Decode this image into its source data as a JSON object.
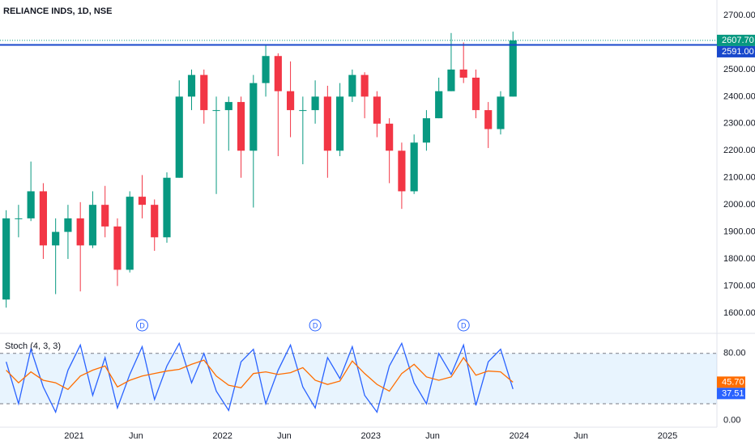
{
  "chart_data": [
    {
      "type": "candlestick",
      "title": "RELIANCE INDS, 1D, NSE",
      "x": [
        "2020-07",
        "2020-08",
        "2020-09",
        "2020-10",
        "2020-11",
        "2020-12",
        "2021-01",
        "2021-02",
        "2021-03",
        "2021-04",
        "2021-05",
        "2021-06",
        "2021-07",
        "2021-08",
        "2021-09",
        "2021-10",
        "2021-11",
        "2021-12",
        "2022-01",
        "2022-02",
        "2022-03",
        "2022-04",
        "2022-05",
        "2022-06",
        "2022-07",
        "2022-08",
        "2022-09",
        "2022-10",
        "2022-11",
        "2022-12",
        "2023-01",
        "2023-02",
        "2023-03",
        "2023-04",
        "2023-05",
        "2023-06",
        "2023-07",
        "2023-08",
        "2023-09",
        "2023-10",
        "2023-11",
        "2023-12"
      ],
      "open": [
        1650,
        1950,
        1950,
        2050,
        1850,
        1900,
        1950,
        1850,
        2000,
        1920,
        1760,
        2030,
        2000,
        1880,
        2100,
        2400,
        2480,
        2350,
        2350,
        2380,
        2200,
        2450,
        2550,
        2420,
        2350,
        2350,
        2400,
        2200,
        2400,
        2480,
        2400,
        2300,
        2200,
        2050,
        2230,
        2320,
        2420,
        2500,
        2470,
        2350,
        2280,
        2400
      ],
      "high": [
        1980,
        2000,
        2160,
        2080,
        1950,
        2000,
        2010,
        2050,
        2070,
        1950,
        2050,
        2110,
        2020,
        2120,
        2460,
        2500,
        2500,
        2400,
        2400,
        2400,
        2480,
        2590,
        2560,
        2530,
        2400,
        2460,
        2440,
        2450,
        2500,
        2490,
        2420,
        2320,
        2230,
        2260,
        2350,
        2470,
        2635,
        2600,
        2500,
        2380,
        2420,
        2640
      ],
      "low": [
        1620,
        1880,
        1940,
        1800,
        1670,
        1800,
        1680,
        1840,
        1880,
        1700,
        1750,
        1950,
        1830,
        1860,
        2100,
        2350,
        2300,
        2040,
        2200,
        2100,
        1990,
        2400,
        2180,
        2250,
        2150,
        2300,
        2100,
        2180,
        2380,
        2320,
        2250,
        2080,
        1985,
        2040,
        2200,
        2320,
        2420,
        2450,
        2320,
        2210,
        2260,
        2400
      ],
      "close": [
        1950,
        1950,
        2050,
        1850,
        1900,
        1950,
        1850,
        2000,
        1920,
        1760,
        2030,
        2000,
        1880,
        2100,
        2400,
        2480,
        2350,
        2350,
        2380,
        2200,
        2450,
        2550,
        2420,
        2350,
        2350,
        2400,
        2200,
        2400,
        2480,
        2400,
        2300,
        2200,
        2050,
        2230,
        2320,
        2420,
        2500,
        2470,
        2350,
        2280,
        2400,
        2607.7
      ],
      "close_labels": [
        null,
        null,
        null,
        null,
        null,
        null,
        null,
        null,
        null,
        null,
        null,
        null,
        null,
        null,
        null,
        null,
        null,
        null,
        null,
        null,
        null,
        null,
        null,
        null,
        null,
        null,
        null,
        null,
        null,
        null,
        null,
        null,
        null,
        null,
        null,
        null,
        null,
        null,
        null,
        null,
        null,
        "2607.70"
      ],
      "up_color": "#089981",
      "down_color": "#f23645",
      "hlines": [
        {
          "value": 2591,
          "label": "2591.00",
          "color": "#1848cc"
        }
      ],
      "events": [
        {
          "x": "2021-06",
          "label": "D"
        },
        {
          "x": "2022-08",
          "label": "D"
        },
        {
          "x": "2023-08",
          "label": "D"
        }
      ],
      "ylim": [
        1531,
        2757
      ],
      "yticks": [
        {
          "value": 1600,
          "label": "1600.00"
        },
        {
          "value": 1700,
          "label": "1700.00"
        },
        {
          "value": 1800,
          "label": "1800.00"
        },
        {
          "value": 1900,
          "label": "1900.00"
        },
        {
          "value": 2000,
          "label": "2000.00"
        },
        {
          "value": 2100,
          "label": "2100.00"
        },
        {
          "value": 2200,
          "label": "2200.00"
        },
        {
          "value": 2300,
          "label": "2300.00"
        },
        {
          "value": 2400,
          "label": "2400.00"
        },
        {
          "value": 2500,
          "label": "2500.00"
        },
        {
          "value": 2700,
          "label": "2700.00"
        }
      ],
      "xlim": [
        "2020-07",
        "2025-05"
      ],
      "xticks": [
        {
          "value": "2021-01",
          "label": "2021"
        },
        {
          "value": "2021-06",
          "label": "Jun"
        },
        {
          "value": "2022-01",
          "label": "2022"
        },
        {
          "value": "2022-06",
          "label": "Jun"
        },
        {
          "value": "2023-01",
          "label": "2023"
        },
        {
          "value": "2023-06",
          "label": "Jun"
        },
        {
          "value": "2024-01",
          "label": "2024"
        },
        {
          "value": "2024-06",
          "label": "Jun"
        },
        {
          "value": "2025-01",
          "label": "2025"
        }
      ],
      "grid": false
    },
    {
      "type": "line",
      "title": "Stoch (4, 3, 3)",
      "x": [
        "2020-07",
        "2020-08",
        "2020-09",
        "2020-10",
        "2020-11",
        "2020-12",
        "2021-01",
        "2021-02",
        "2021-03",
        "2021-04",
        "2021-05",
        "2021-06",
        "2021-07",
        "2021-08",
        "2021-09",
        "2021-10",
        "2021-11",
        "2021-12",
        "2022-01",
        "2022-02",
        "2022-03",
        "2022-04",
        "2022-05",
        "2022-06",
        "2022-07",
        "2022-08",
        "2022-09",
        "2022-10",
        "2022-11",
        "2022-12",
        "2023-01",
        "2023-02",
        "2023-03",
        "2023-04",
        "2023-05",
        "2023-06",
        "2023-07",
        "2023-08",
        "2023-09",
        "2023-10",
        "2023-11",
        "2023-12"
      ],
      "series": [
        {
          "name": "%K",
          "color": "#2962ff",
          "values": [
            70,
            20,
            85,
            40,
            10,
            60,
            90,
            30,
            75,
            15,
            55,
            88,
            25,
            65,
            92,
            45,
            80,
            35,
            12,
            70,
            85,
            20,
            60,
            90,
            40,
            15,
            75,
            50,
            88,
            30,
            10,
            65,
            92,
            45,
            20,
            80,
            55,
            90,
            18,
            70,
            85,
            37.51
          ],
          "value_labels": [
            null,
            null,
            null,
            null,
            null,
            null,
            null,
            null,
            null,
            null,
            null,
            null,
            null,
            null,
            null,
            null,
            null,
            null,
            null,
            null,
            null,
            null,
            null,
            null,
            null,
            null,
            null,
            null,
            null,
            null,
            null,
            null,
            null,
            null,
            null,
            null,
            null,
            null,
            null,
            null,
            null,
            "37.51"
          ]
        },
        {
          "name": "%D",
          "color": "#ff6d00",
          "values": [
            60,
            45,
            58,
            48,
            45,
            37,
            53,
            60,
            65,
            40,
            48,
            53,
            56,
            59,
            61,
            67,
            72,
            53,
            42,
            39,
            56,
            58,
            55,
            57,
            63,
            48,
            43,
            47,
            71,
            56,
            43,
            35,
            56,
            67,
            52,
            48,
            52,
            75,
            54,
            59,
            58,
            45.7
          ],
          "value_labels": [
            null,
            null,
            null,
            null,
            null,
            null,
            null,
            null,
            null,
            null,
            null,
            null,
            null,
            null,
            null,
            null,
            null,
            null,
            null,
            null,
            null,
            null,
            null,
            null,
            null,
            null,
            null,
            null,
            null,
            null,
            null,
            null,
            null,
            null,
            null,
            null,
            null,
            null,
            null,
            null,
            null,
            "45.70"
          ]
        }
      ],
      "band": [
        20,
        80
      ],
      "ylim": [
        -8,
        102
      ],
      "yticks": [
        {
          "value": 0,
          "label": "0.00"
        },
        {
          "value": 80,
          "label": "80.00"
        }
      ]
    }
  ]
}
